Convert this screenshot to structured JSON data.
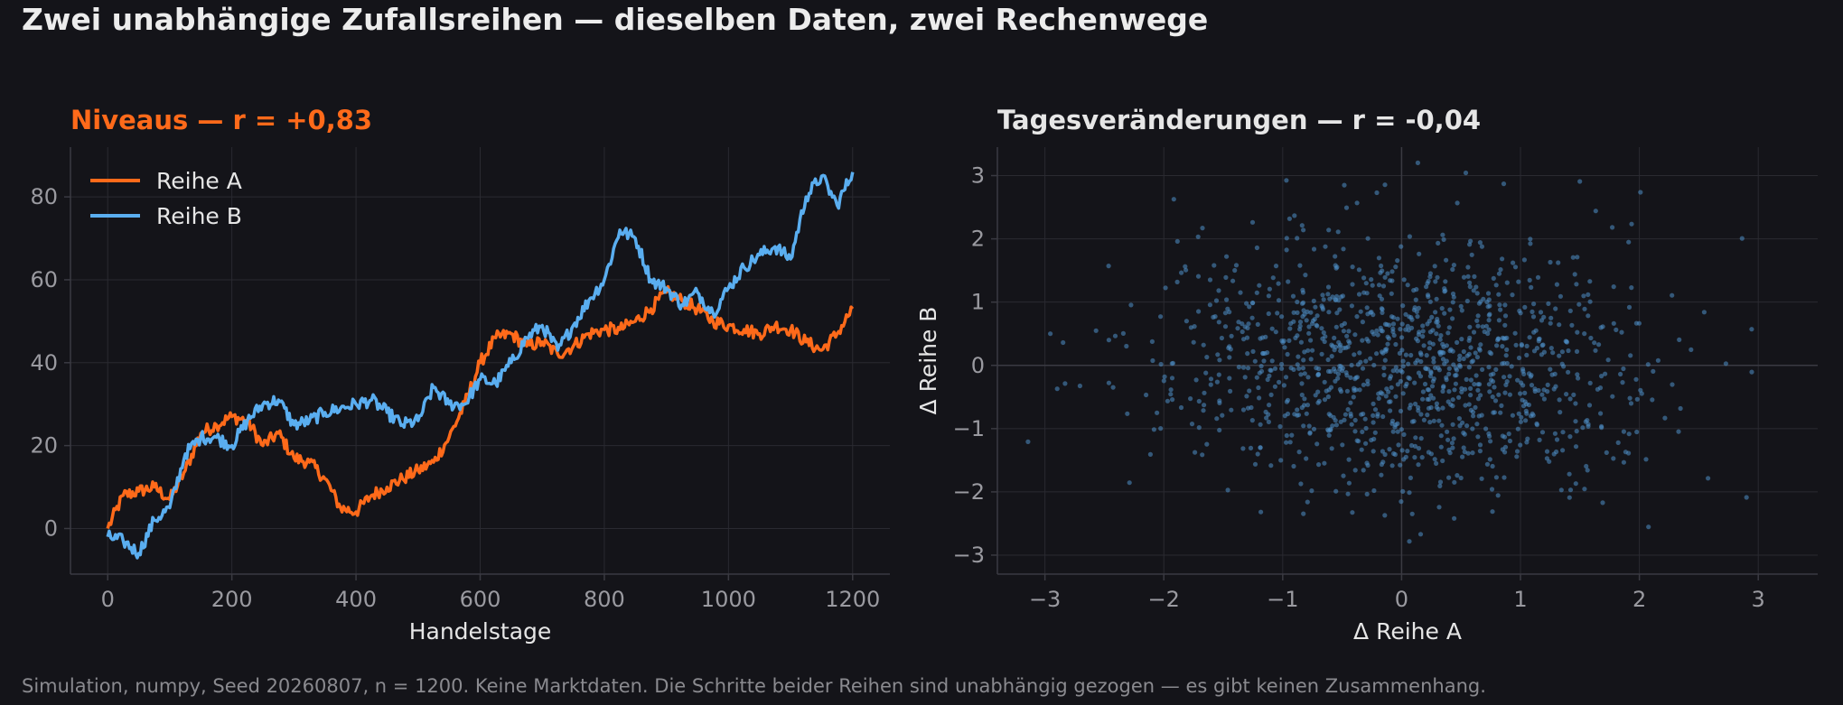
{
  "figure": {
    "suptitle": "Zwei unabhängige Zufallsreihen — dieselben Daten, zwei Rechenwege",
    "footnote": "Simulation, numpy, Seed 20260807, n = 1200. Keine Marktdaten. Die Schritte beider Reihen sind unabhängig gezogen — es gibt keinen Zusammenhang."
  },
  "colors": {
    "background": "#141419",
    "series_a": "#ff6a1a",
    "series_b": "#5aaef0",
    "scatter_point": "#4f8fc9",
    "grid": "#2a2a31",
    "text": "#e6e6e6",
    "tick_text": "#9a9aa0",
    "axis_spine": "#3a3a42"
  },
  "chart_data": [
    {
      "type": "line",
      "title": "Niveaus  —  r = +0,83",
      "title_color": "#ff6a1a",
      "xlabel": "Handelstage",
      "ylabel": "",
      "xlim": [
        -60,
        1260
      ],
      "ylim": [
        -11,
        92
      ],
      "xticks": [
        0,
        200,
        400,
        600,
        800,
        1000,
        1200
      ],
      "yticks": [
        0,
        20,
        40,
        60,
        80
      ],
      "grid": true,
      "legend": "top-left",
      "series": [
        {
          "name": "Reihe A",
          "color": "#ff6a1a",
          "x": [
            0,
            25,
            50,
            75,
            100,
            125,
            150,
            175,
            200,
            225,
            250,
            275,
            300,
            325,
            350,
            375,
            400,
            425,
            450,
            475,
            500,
            525,
            550,
            575,
            600,
            625,
            650,
            675,
            700,
            725,
            750,
            775,
            800,
            825,
            850,
            875,
            900,
            925,
            950,
            975,
            1000,
            1025,
            1050,
            1075,
            1100,
            1125,
            1150,
            1175,
            1200
          ],
          "y": [
            0,
            8,
            9,
            10,
            7,
            14,
            23,
            25,
            27,
            26,
            20,
            23,
            17,
            16,
            12,
            5,
            4,
            8,
            10,
            12,
            14,
            16,
            22,
            30,
            40,
            46,
            47,
            44,
            45,
            42,
            44,
            47,
            48,
            48,
            50,
            53,
            57,
            55,
            53,
            50,
            49,
            48,
            47,
            49,
            48,
            45,
            43,
            47,
            53
          ]
        },
        {
          "name": "Reihe B",
          "color": "#5aaef0",
          "x": [
            0,
            25,
            50,
            75,
            100,
            125,
            150,
            175,
            200,
            225,
            250,
            275,
            300,
            325,
            350,
            375,
            400,
            425,
            450,
            475,
            500,
            525,
            550,
            575,
            600,
            625,
            650,
            675,
            700,
            725,
            750,
            775,
            800,
            825,
            850,
            875,
            900,
            925,
            950,
            975,
            1000,
            1025,
            1050,
            1075,
            1100,
            1125,
            1150,
            1175,
            1200
          ],
          "y": [
            -2,
            -3,
            -6,
            2,
            5,
            18,
            22,
            22,
            20,
            26,
            30,
            31,
            25,
            26,
            28,
            29,
            30,
            31,
            28,
            25,
            26,
            34,
            30,
            30,
            36,
            35,
            40,
            46,
            49,
            43,
            49,
            55,
            60,
            72,
            70,
            60,
            58,
            54,
            57,
            52,
            58,
            63,
            66,
            68,
            65,
            80,
            85,
            78,
            86
          ]
        }
      ]
    },
    {
      "type": "scatter",
      "title": "Tagesveränderungen  —  r = -0,04",
      "title_color": "#e6e6e6",
      "xlabel": "Δ Reihe A",
      "ylabel": "Δ Reihe B",
      "xlim": [
        -3.4,
        3.5
      ],
      "ylim": [
        -3.3,
        3.45
      ],
      "xticks": [
        -3,
        -2,
        -1,
        0,
        1,
        2,
        3
      ],
      "yticks": [
        -3,
        -2,
        -1,
        0,
        1,
        2,
        3
      ],
      "tick_labels_x": [
        "−3",
        "−2",
        "−1",
        "0",
        "1",
        "2",
        "3"
      ],
      "tick_labels_y": [
        "−3",
        "−2",
        "−1",
        "0",
        "1",
        "2",
        "3"
      ],
      "grid": true,
      "n_points": 1200,
      "seed": 20260807,
      "correlation": -0.04
    }
  ]
}
